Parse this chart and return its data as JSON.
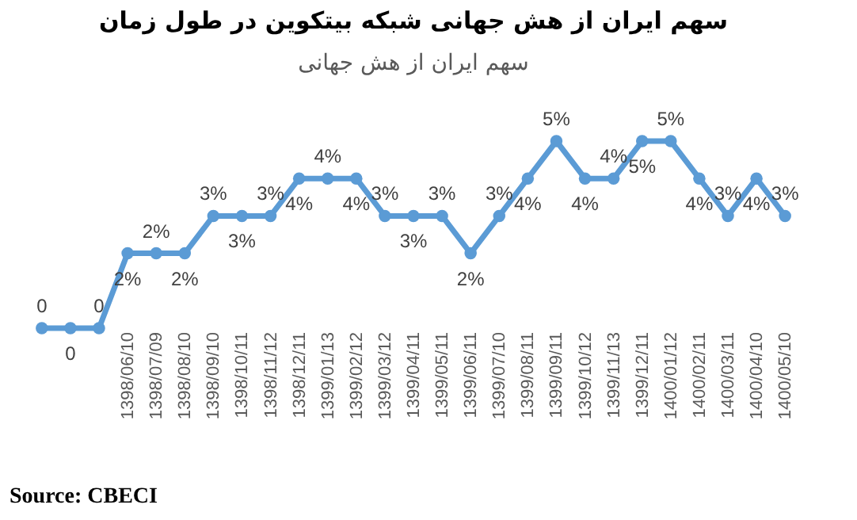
{
  "chart_data": {
    "type": "line",
    "title": "سهم ایران از هش جهانی شبکه بیتکوین در طول زمان",
    "subtitle": "سهم ایران از هش جهانی",
    "categories": [
      null,
      null,
      null,
      "1398/06/10",
      "1398/07/09",
      "1398/08/10",
      "1398/09/10",
      "1398/10/11",
      "1398/11/12",
      "1398/12/11",
      "1399/01/13",
      "1399/02/12",
      "1399/03/12",
      "1399/04/11",
      "1399/05/11",
      "1399/06/11",
      "1399/07/10",
      "1399/08/11",
      "1399/09/11",
      "1399/10/12",
      "1399/11/13",
      "1399/12/11",
      "1400/01/12",
      "1400/02/11",
      "1400/03/11",
      "1400/04/10",
      "1400/05/10"
    ],
    "series": [
      {
        "color": "#5b9bd5",
        "values": [
          0,
          0,
          0,
          2,
          2,
          2,
          3,
          3,
          3,
          4,
          4,
          4,
          3,
          3,
          3,
          2,
          3,
          4,
          5,
          4,
          4,
          5,
          5,
          4,
          3,
          4,
          3
        ],
        "value_labels": [
          "0",
          "0",
          "0",
          "2%",
          "2%",
          "2%",
          "3%",
          "3%",
          "3%",
          "4%",
          "4%",
          "4%",
          "3%",
          "3%",
          "3%",
          "2%",
          "3%",
          "4%",
          "5%",
          "4%",
          "4%",
          "5%",
          "5%",
          "4%",
          "3%",
          "4%",
          "3%"
        ]
      }
    ],
    "marker": "circle",
    "line_style": "solid",
    "grid": false,
    "annotations": [
      "Source: CBECI"
    ]
  }
}
